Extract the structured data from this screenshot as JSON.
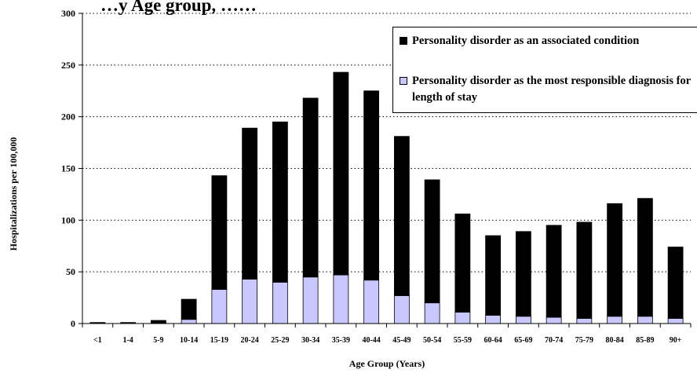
{
  "chart_data": {
    "type": "bar",
    "stacked": true,
    "title": "…y Age group, ……",
    "xlabel": "Age Group (Years)",
    "ylabel": "Hospitalizations per 100,000",
    "ylim": [
      0,
      300
    ],
    "yticks": [
      0,
      50,
      100,
      150,
      200,
      250,
      300
    ],
    "grid": "horizontal dotted",
    "legend_position": "top-right",
    "categories": [
      "<1",
      "1-4",
      "5-9",
      "10-14",
      "15-19",
      "20-24",
      "25-29",
      "30-34",
      "35-39",
      "40-44",
      "45-49",
      "50-54",
      "55-59",
      "60-64",
      "65-69",
      "70-74",
      "75-79",
      "80-84",
      "85-89",
      "90+"
    ],
    "series": [
      {
        "name": "Personality disorder as the most responsible diagnosis for length of stay",
        "color": "#c8c8ff",
        "values": [
          0.3,
          0.3,
          0.5,
          4,
          33,
          43,
          40,
          45,
          47,
          42,
          27,
          20,
          11,
          8,
          7,
          6,
          5,
          7,
          7,
          5
        ]
      },
      {
        "name": "Personality disorder as an associated condition",
        "color": "#000000",
        "values": [
          0.7,
          0.7,
          2.5,
          19.5,
          110,
          146,
          155,
          173,
          196,
          183,
          154,
          119,
          95,
          77,
          82,
          89,
          93,
          109,
          114,
          69
        ]
      }
    ]
  }
}
